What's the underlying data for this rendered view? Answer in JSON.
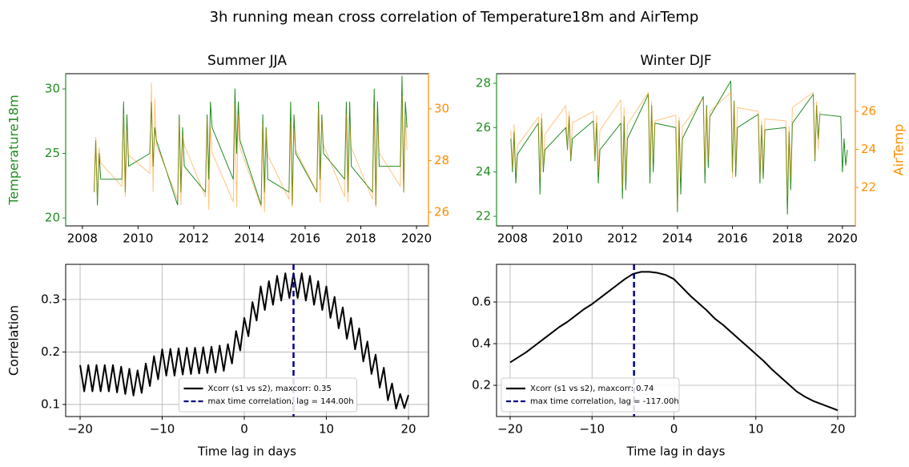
{
  "title": "3h running mean cross correlation of Temperature18m and AirTemp",
  "chart_data": [
    {
      "type": "line",
      "title": "Summer JJA",
      "ylabel": "Temperature18m",
      "xlim": [
        2007.4,
        2020.43
      ],
      "ylim": [
        19.38,
        31.18
      ],
      "y2lim": [
        25.47,
        31.36
      ],
      "xticks": [
        2008,
        2010,
        2012,
        2014,
        2016,
        2018,
        2020
      ],
      "yticks": [
        20,
        25,
        30
      ],
      "y2ticks": [
        26,
        28,
        30
      ],
      "grid": false,
      "series": [
        {
          "name": "Temperature18m",
          "color": "#228b22",
          "axis": "y",
          "x": [
            2008.42,
            2008.48,
            2008.54,
            2008.6,
            2008.66,
            2009.42,
            2009.48,
            2009.54,
            2009.6,
            2009.66,
            2010.42,
            2010.48,
            2010.54,
            2010.6,
            2010.66,
            2011.42,
            2011.48,
            2011.54,
            2011.6,
            2011.66,
            2012.42,
            2012.48,
            2012.54,
            2012.6,
            2012.66,
            2013.42,
            2013.48,
            2013.54,
            2013.6,
            2013.66,
            2014.42,
            2014.48,
            2014.54,
            2014.6,
            2014.66,
            2015.42,
            2015.48,
            2015.54,
            2015.6,
            2015.66,
            2016.42,
            2016.48,
            2016.54,
            2016.6,
            2016.66,
            2017.42,
            2017.48,
            2017.54,
            2017.6,
            2017.66,
            2018.42,
            2018.48,
            2018.54,
            2018.6,
            2018.66,
            2019.42,
            2019.48,
            2019.54,
            2019.6,
            2019.66
          ],
          "values": [
            22,
            26,
            21,
            25,
            23,
            23,
            29,
            22,
            28,
            24,
            25,
            29,
            24,
            27,
            26,
            21,
            28,
            22,
            27,
            24,
            22,
            28,
            23,
            29,
            27,
            23,
            30,
            25,
            29,
            26,
            21,
            28,
            22,
            27,
            23,
            22,
            29,
            21,
            28,
            25,
            22,
            29,
            23,
            28,
            25,
            23,
            29,
            22,
            29,
            24,
            22,
            30,
            21,
            29,
            24,
            24,
            31,
            22,
            29,
            27
          ]
        },
        {
          "name": "AirTemp",
          "color": "#ff8c00",
          "axis": "y2",
          "x": [
            2008.42,
            2008.48,
            2008.54,
            2008.6,
            2008.66,
            2009.42,
            2009.48,
            2009.54,
            2009.6,
            2009.66,
            2010.42,
            2010.48,
            2010.54,
            2010.6,
            2010.66,
            2011.42,
            2011.48,
            2011.54,
            2011.6,
            2011.66,
            2012.42,
            2012.48,
            2012.54,
            2012.6,
            2012.66,
            2013.42,
            2013.48,
            2013.54,
            2013.6,
            2013.66,
            2014.42,
            2014.48,
            2014.54,
            2014.6,
            2014.66,
            2015.42,
            2015.48,
            2015.54,
            2015.6,
            2015.66,
            2016.42,
            2016.48,
            2016.54,
            2016.6,
            2016.66,
            2017.42,
            2017.48,
            2017.54,
            2017.6,
            2017.66,
            2018.42,
            2018.48,
            2018.54,
            2018.6,
            2018.66,
            2019.42,
            2019.48,
            2019.54,
            2019.6,
            2019.66
          ],
          "values": [
            26.8,
            28.9,
            26.5,
            28.5,
            27.9,
            27,
            29.8,
            26.6,
            29.2,
            28.2,
            27.5,
            31,
            26.8,
            30.4,
            28.6,
            26.5,
            29.5,
            26.3,
            29,
            28.6,
            26.6,
            29.6,
            26.1,
            29.3,
            28.3,
            26.4,
            30.2,
            26.2,
            29.8,
            28.5,
            26.2,
            29.4,
            26,
            29.2,
            28.2,
            26.5,
            29.5,
            26.2,
            29.2,
            28.4,
            26.8,
            30,
            26.4,
            29.6,
            28.6,
            26.6,
            29.8,
            26.4,
            29.4,
            28.5,
            26.5,
            30,
            26.2,
            29.5,
            28.3,
            27,
            30.5,
            26.8,
            29.8,
            28.4
          ]
        }
      ]
    },
    {
      "type": "line",
      "title": "Winter DJF",
      "y2label": "AirTemp",
      "xlim": [
        2007.42,
        2020.47
      ],
      "ylim": [
        21.57,
        28.43
      ],
      "y2lim": [
        19.98,
        27.98
      ],
      "xticks": [
        2008,
        2010,
        2012,
        2014,
        2016,
        2018,
        2020
      ],
      "yticks": [
        22,
        24,
        26,
        28
      ],
      "y2ticks": [
        22,
        24,
        26
      ],
      "grid": false,
      "series": [
        {
          "name": "Temperature18m",
          "color": "#228b22",
          "axis": "y",
          "x": [
            2007.94,
            2008.0,
            2008.06,
            2008.12,
            2008.18,
            2008.94,
            2009.0,
            2009.06,
            2009.12,
            2009.18,
            2009.94,
            2010.0,
            2010.06,
            2010.12,
            2010.18,
            2010.94,
            2011.0,
            2011.06,
            2011.12,
            2011.18,
            2011.94,
            2012.0,
            2012.06,
            2012.12,
            2012.18,
            2012.94,
            2013.0,
            2013.06,
            2013.12,
            2013.18,
            2013.94,
            2014.0,
            2014.06,
            2014.12,
            2014.18,
            2014.94,
            2015.0,
            2015.06,
            2015.12,
            2015.18,
            2015.94,
            2016.0,
            2016.06,
            2016.12,
            2016.18,
            2016.94,
            2017.0,
            2017.06,
            2017.12,
            2017.18,
            2017.94,
            2018.0,
            2018.06,
            2018.12,
            2018.18,
            2018.94,
            2019.0,
            2019.06,
            2019.12,
            2019.18,
            2019.94,
            2020.0,
            2020.06,
            2020.12,
            2020.18
          ],
          "values": [
            25.5,
            24,
            25.8,
            23.5,
            24.8,
            26.2,
            23,
            26.4,
            24,
            25,
            26,
            25,
            26.5,
            24.5,
            25.5,
            26.3,
            24.5,
            26.2,
            23.5,
            25,
            26.2,
            22.8,
            26.5,
            23.2,
            25.5,
            27.5,
            23.5,
            27,
            24,
            26.2,
            26,
            22.2,
            26.3,
            23,
            25.5,
            27.4,
            23.5,
            27,
            24.2,
            26.5,
            28.1,
            24,
            27.2,
            23.8,
            26,
            26.6,
            23.5,
            26.1,
            23.7,
            25.9,
            26,
            22.1,
            25.8,
            23.2,
            26.2,
            27.5,
            24.5,
            27,
            25.5,
            26.6,
            26.5,
            24,
            25.5,
            24.3,
            25
          ]
        },
        {
          "name": "AirTemp",
          "color": "#ff8c00",
          "axis": "y2",
          "x": [
            2007.94,
            2008.0,
            2008.06,
            2008.12,
            2008.18,
            2008.94,
            2009.0,
            2009.06,
            2009.12,
            2009.18,
            2009.94,
            2010.0,
            2010.06,
            2010.12,
            2010.18,
            2010.94,
            2011.0,
            2011.06,
            2011.12,
            2011.18,
            2011.94,
            2012.0,
            2012.06,
            2012.12,
            2012.18,
            2012.94,
            2013.0,
            2013.06,
            2013.12,
            2013.18,
            2013.94,
            2014.0,
            2014.06,
            2014.12,
            2014.18,
            2014.94,
            2015.0,
            2015.06,
            2015.12,
            2015.18,
            2015.94,
            2016.0,
            2016.06,
            2016.12,
            2016.18,
            2016.94,
            2017.0,
            2017.06,
            2017.12,
            2017.18,
            2017.94,
            2018.0,
            2018.06,
            2018.12,
            2018.18,
            2018.94,
            2019.0,
            2019.06,
            2019.12,
            2019.18
          ],
          "values": [
            25,
            23,
            25.3,
            22.8,
            24.2,
            25.7,
            22.5,
            25.9,
            23,
            24.8,
            26.3,
            24,
            26,
            23.5,
            25.4,
            26,
            23.5,
            25.8,
            22.8,
            25,
            26.6,
            22,
            26.2,
            22.5,
            25.3,
            27,
            23,
            26.5,
            23.5,
            25.5,
            25.8,
            21,
            25.7,
            22.5,
            25.2,
            26.7,
            23,
            26.2,
            23.5,
            26,
            27,
            22.5,
            26.5,
            23,
            26.2,
            26,
            22.5,
            25.5,
            23,
            25.6,
            25.5,
            21.5,
            25.2,
            22.5,
            26.2,
            27,
            23.5,
            26.5,
            24,
            26
          ]
        }
      ]
    },
    {
      "type": "line",
      "xlabel": "Time lag in days",
      "ylabel": "Correlation",
      "xlim": [
        -21.76,
        22.44
      ],
      "ylim": [
        0.077,
        0.367
      ],
      "xticks": [
        {
          "value": -20,
          "label": "−20"
        },
        {
          "value": -10,
          "label": "−10"
        },
        0,
        10,
        20
      ],
      "yticks": [
        0.1,
        0.2,
        0.3
      ],
      "grid": true,
      "legend": "lower center",
      "series": [
        {
          "name": "Xcorr (s1 vs s2), maxcorr: 0.35",
          "color": "#000000",
          "x": [
            -20,
            -19.5,
            -19,
            -18.5,
            -18,
            -17.5,
            -17,
            -16.5,
            -16,
            -15.5,
            -15,
            -14.5,
            -14,
            -13.5,
            -13,
            -12.5,
            -12,
            -11.5,
            -11,
            -10.5,
            -10,
            -9.5,
            -9,
            -8.5,
            -8,
            -7.5,
            -7,
            -6.5,
            -6,
            -5.5,
            -5,
            -4.5,
            -4,
            -3.5,
            -3,
            -2.5,
            -2,
            -1.5,
            -1,
            -0.5,
            0,
            0.5,
            1,
            1.5,
            2,
            2.5,
            3,
            3.5,
            4,
            4.5,
            5,
            5.5,
            6,
            6.5,
            7,
            7.5,
            8,
            8.5,
            9,
            9.5,
            10,
            10.5,
            11,
            11.5,
            12,
            12.5,
            13,
            13.5,
            14,
            14.5,
            15,
            15.5,
            16,
            16.5,
            17,
            17.5,
            18,
            18.5,
            19,
            19.5,
            20
          ],
          "values": [
            0.175,
            0.125,
            0.175,
            0.125,
            0.175,
            0.125,
            0.175,
            0.125,
            0.175,
            0.123,
            0.172,
            0.12,
            0.168,
            0.117,
            0.165,
            0.122,
            0.178,
            0.135,
            0.192,
            0.148,
            0.205,
            0.155,
            0.206,
            0.155,
            0.207,
            0.157,
            0.208,
            0.158,
            0.208,
            0.159,
            0.209,
            0.16,
            0.21,
            0.161,
            0.212,
            0.164,
            0.215,
            0.178,
            0.24,
            0.203,
            0.265,
            0.23,
            0.295,
            0.26,
            0.325,
            0.28,
            0.335,
            0.29,
            0.345,
            0.298,
            0.35,
            0.303,
            0.35,
            0.303,
            0.35,
            0.298,
            0.345,
            0.29,
            0.335,
            0.28,
            0.325,
            0.265,
            0.305,
            0.245,
            0.285,
            0.225,
            0.265,
            0.205,
            0.245,
            0.182,
            0.22,
            0.158,
            0.195,
            0.132,
            0.17,
            0.108,
            0.14,
            0.092,
            0.12,
            0.093,
            0.118
          ]
        }
      ],
      "vlines": [
        {
          "name": "max time correlation, lag = 144.00h",
          "color": "#00008b",
          "x": 6
        }
      ]
    },
    {
      "type": "line",
      "xlabel": "Time lag in days",
      "xlim": [
        -21.66,
        22.15
      ],
      "ylim": [
        0.05,
        0.781
      ],
      "xticks": [
        {
          "value": -20,
          "label": "−20"
        },
        {
          "value": -10,
          "label": "−10"
        },
        0,
        10,
        20
      ],
      "yticks": [
        0.2,
        0.4,
        0.6
      ],
      "grid": true,
      "legend": "lower left",
      "series": [
        {
          "name": "Xcorr (s1 vs s2), maxcorr: 0.74",
          "color": "#000000",
          "x": [
            -20,
            -19,
            -18,
            -17,
            -16,
            -15,
            -14,
            -13,
            -12,
            -11,
            -10,
            -9,
            -8,
            -7,
            -6,
            -5,
            -4,
            -3,
            -2,
            -1,
            0,
            1,
            2,
            3,
            4,
            5,
            6,
            7,
            8,
            9,
            10,
            11,
            12,
            13,
            14,
            15,
            16,
            17,
            18,
            19,
            20
          ],
          "values": [
            0.31,
            0.335,
            0.36,
            0.39,
            0.42,
            0.45,
            0.48,
            0.505,
            0.535,
            0.565,
            0.59,
            0.62,
            0.65,
            0.68,
            0.71,
            0.735,
            0.745,
            0.745,
            0.74,
            0.73,
            0.71,
            0.67,
            0.63,
            0.595,
            0.56,
            0.52,
            0.49,
            0.455,
            0.42,
            0.385,
            0.35,
            0.315,
            0.275,
            0.24,
            0.205,
            0.17,
            0.145,
            0.125,
            0.11,
            0.095,
            0.08
          ]
        }
      ],
      "vlines": [
        {
          "name": "max time correlation, lag = -117.00h",
          "color": "#00008b",
          "x": -4.875
        }
      ]
    }
  ]
}
